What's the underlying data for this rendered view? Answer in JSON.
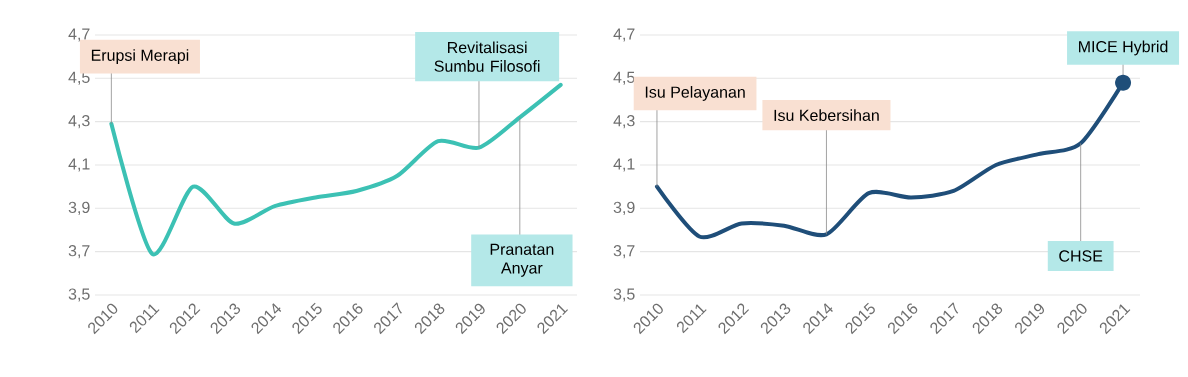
{
  "chart_data": [
    {
      "type": "line",
      "categories": [
        "2010",
        "2011",
        "2012",
        "2013",
        "2014",
        "2015",
        "2016",
        "2017",
        "2018",
        "2019",
        "2020",
        "2021"
      ],
      "series": [
        {
          "color": "#3cc1b4",
          "values": [
            4.29,
            3.69,
            4.0,
            3.83,
            3.91,
            3.95,
            3.98,
            4.05,
            4.21,
            4.18,
            4.32,
            4.47
          ]
        }
      ],
      "ylim": [
        3.5,
        4.7
      ],
      "yticks": [
        {
          "value": 3.5,
          "label": "3,5"
        },
        {
          "value": 3.7,
          "label": "3,7"
        },
        {
          "value": 3.9,
          "label": "3,9"
        },
        {
          "value": 4.1,
          "label": "4,1"
        },
        {
          "value": 4.3,
          "label": "4,3"
        },
        {
          "value": 4.5,
          "label": "4,5"
        },
        {
          "value": 4.7,
          "label": "4,7"
        }
      ],
      "grid": "y",
      "annotations": [
        {
          "text": "Erupsi Merapi",
          "x": "2010",
          "y": 4.29
        },
        {
          "text": "Revitalisasi Sumbu Filosofi",
          "x": "2019",
          "y": 4.18
        },
        {
          "text": "Pranatan Anyar",
          "x": "2020",
          "y": 4.32
        }
      ]
    },
    {
      "type": "line",
      "categories": [
        "2010",
        "2011",
        "2012",
        "2013",
        "2014",
        "2015",
        "2016",
        "2017",
        "2018",
        "2019",
        "2020",
        "2021"
      ],
      "series": [
        {
          "color": "#1f4e79",
          "values": [
            4.0,
            3.77,
            3.83,
            3.82,
            3.78,
            3.97,
            3.95,
            3.98,
            4.1,
            4.15,
            4.2,
            4.48
          ]
        }
      ],
      "ylim": [
        3.5,
        4.7
      ],
      "yticks": [
        {
          "value": 3.5,
          "label": "3,5"
        },
        {
          "value": 3.7,
          "label": "3,7"
        },
        {
          "value": 3.9,
          "label": "3,9"
        },
        {
          "value": 4.1,
          "label": "4,1"
        },
        {
          "value": 4.3,
          "label": "4,3"
        },
        {
          "value": 4.5,
          "label": "4,5"
        },
        {
          "value": 4.7,
          "label": "4,7"
        }
      ],
      "grid": "y",
      "annotations": [
        {
          "text": "Isu Pelayanan",
          "x": "2010",
          "y": 4.0
        },
        {
          "text": "Isu Kebersihan",
          "x": "2014",
          "y": 3.78
        },
        {
          "text": "CHSE",
          "x": "2020",
          "y": 4.2
        },
        {
          "text": "MICE Hybrid",
          "x": "2021",
          "y": 4.48
        }
      ]
    }
  ]
}
